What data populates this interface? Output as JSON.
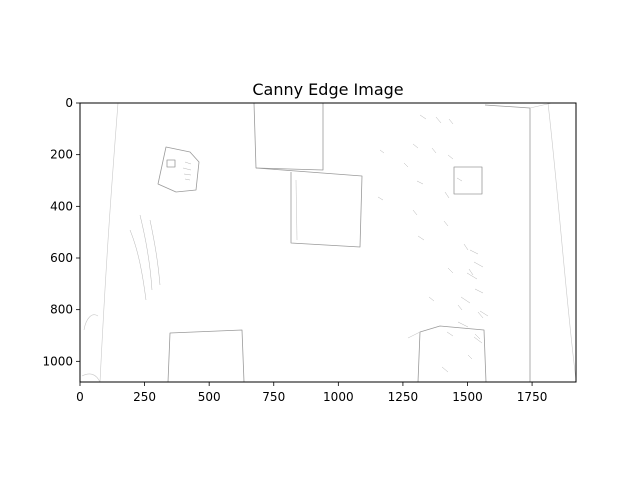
{
  "chart_data": {
    "type": "image",
    "title": "Canny Edge Image",
    "xlabel": "",
    "ylabel": "",
    "xlim": [
      0,
      1920
    ],
    "ylim": [
      1080,
      0
    ],
    "x_ticks": [
      0,
      250,
      500,
      750,
      1000,
      1250,
      1500,
      1750
    ],
    "y_ticks": [
      0,
      200,
      400,
      600,
      800,
      1000
    ],
    "grid": false,
    "colormap": "gray_r"
  }
}
